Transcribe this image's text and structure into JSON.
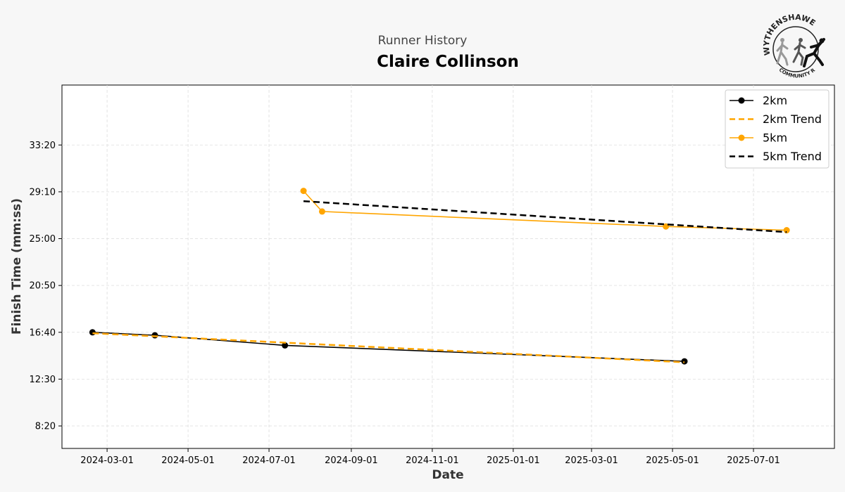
{
  "header": {
    "subtitle": "Runner History",
    "title": "Claire Collinson"
  },
  "logo": {
    "text_top": "WYTHENSHAWE",
    "text_bottom": "COMMUNITY RUN"
  },
  "chart_data": {
    "type": "line",
    "title": "Claire Collinson",
    "subtitle": "Runner History",
    "xlabel": "Date",
    "ylabel": "Finish Time (mm:ss)",
    "x_axis_type": "date",
    "xlim": [
      "2024-01-27",
      "2025-08-31"
    ],
    "ylim_seconds": [
      380,
      2320
    ],
    "x_ticks": [
      "2024-03-01",
      "2024-05-01",
      "2024-07-01",
      "2024-09-01",
      "2024-11-01",
      "2025-01-01",
      "2025-03-01",
      "2025-05-01",
      "2025-07-01"
    ],
    "y_ticks": [
      {
        "label": "8:20",
        "seconds": 500
      },
      {
        "label": "12:30",
        "seconds": 750
      },
      {
        "label": "16:40",
        "seconds": 1000
      },
      {
        "label": "20:50",
        "seconds": 1250
      },
      {
        "label": "25:00",
        "seconds": 1500
      },
      {
        "label": "29:10",
        "seconds": 1750
      },
      {
        "label": "33:20",
        "seconds": 2000
      }
    ],
    "grid": true,
    "legend_position": "top-right",
    "series": [
      {
        "name": "2km",
        "style": "solid-markers",
        "color": "#000000",
        "points": [
          {
            "x": "2024-02-19",
            "y_seconds": 1000
          },
          {
            "x": "2024-04-06",
            "y_seconds": 984
          },
          {
            "x": "2024-07-13",
            "y_seconds": 930
          },
          {
            "x": "2025-05-10",
            "y_seconds": 845
          }
        ]
      },
      {
        "name": "2km Trend",
        "style": "dashed",
        "color": "#FFA500",
        "points": [
          {
            "x": "2024-02-19",
            "y_seconds": 995
          },
          {
            "x": "2025-05-10",
            "y_seconds": 840
          }
        ]
      },
      {
        "name": "5km",
        "style": "solid-markers",
        "color": "#FFA500",
        "points": [
          {
            "x": "2024-07-27",
            "y_seconds": 1755
          },
          {
            "x": "2024-08-10",
            "y_seconds": 1645
          },
          {
            "x": "2025-04-26",
            "y_seconds": 1565
          },
          {
            "x": "2025-07-26",
            "y_seconds": 1545
          }
        ]
      },
      {
        "name": "5km Trend",
        "style": "dashed",
        "color": "#000000",
        "points": [
          {
            "x": "2024-07-27",
            "y_seconds": 1700
          },
          {
            "x": "2025-07-26",
            "y_seconds": 1535
          }
        ]
      }
    ]
  }
}
